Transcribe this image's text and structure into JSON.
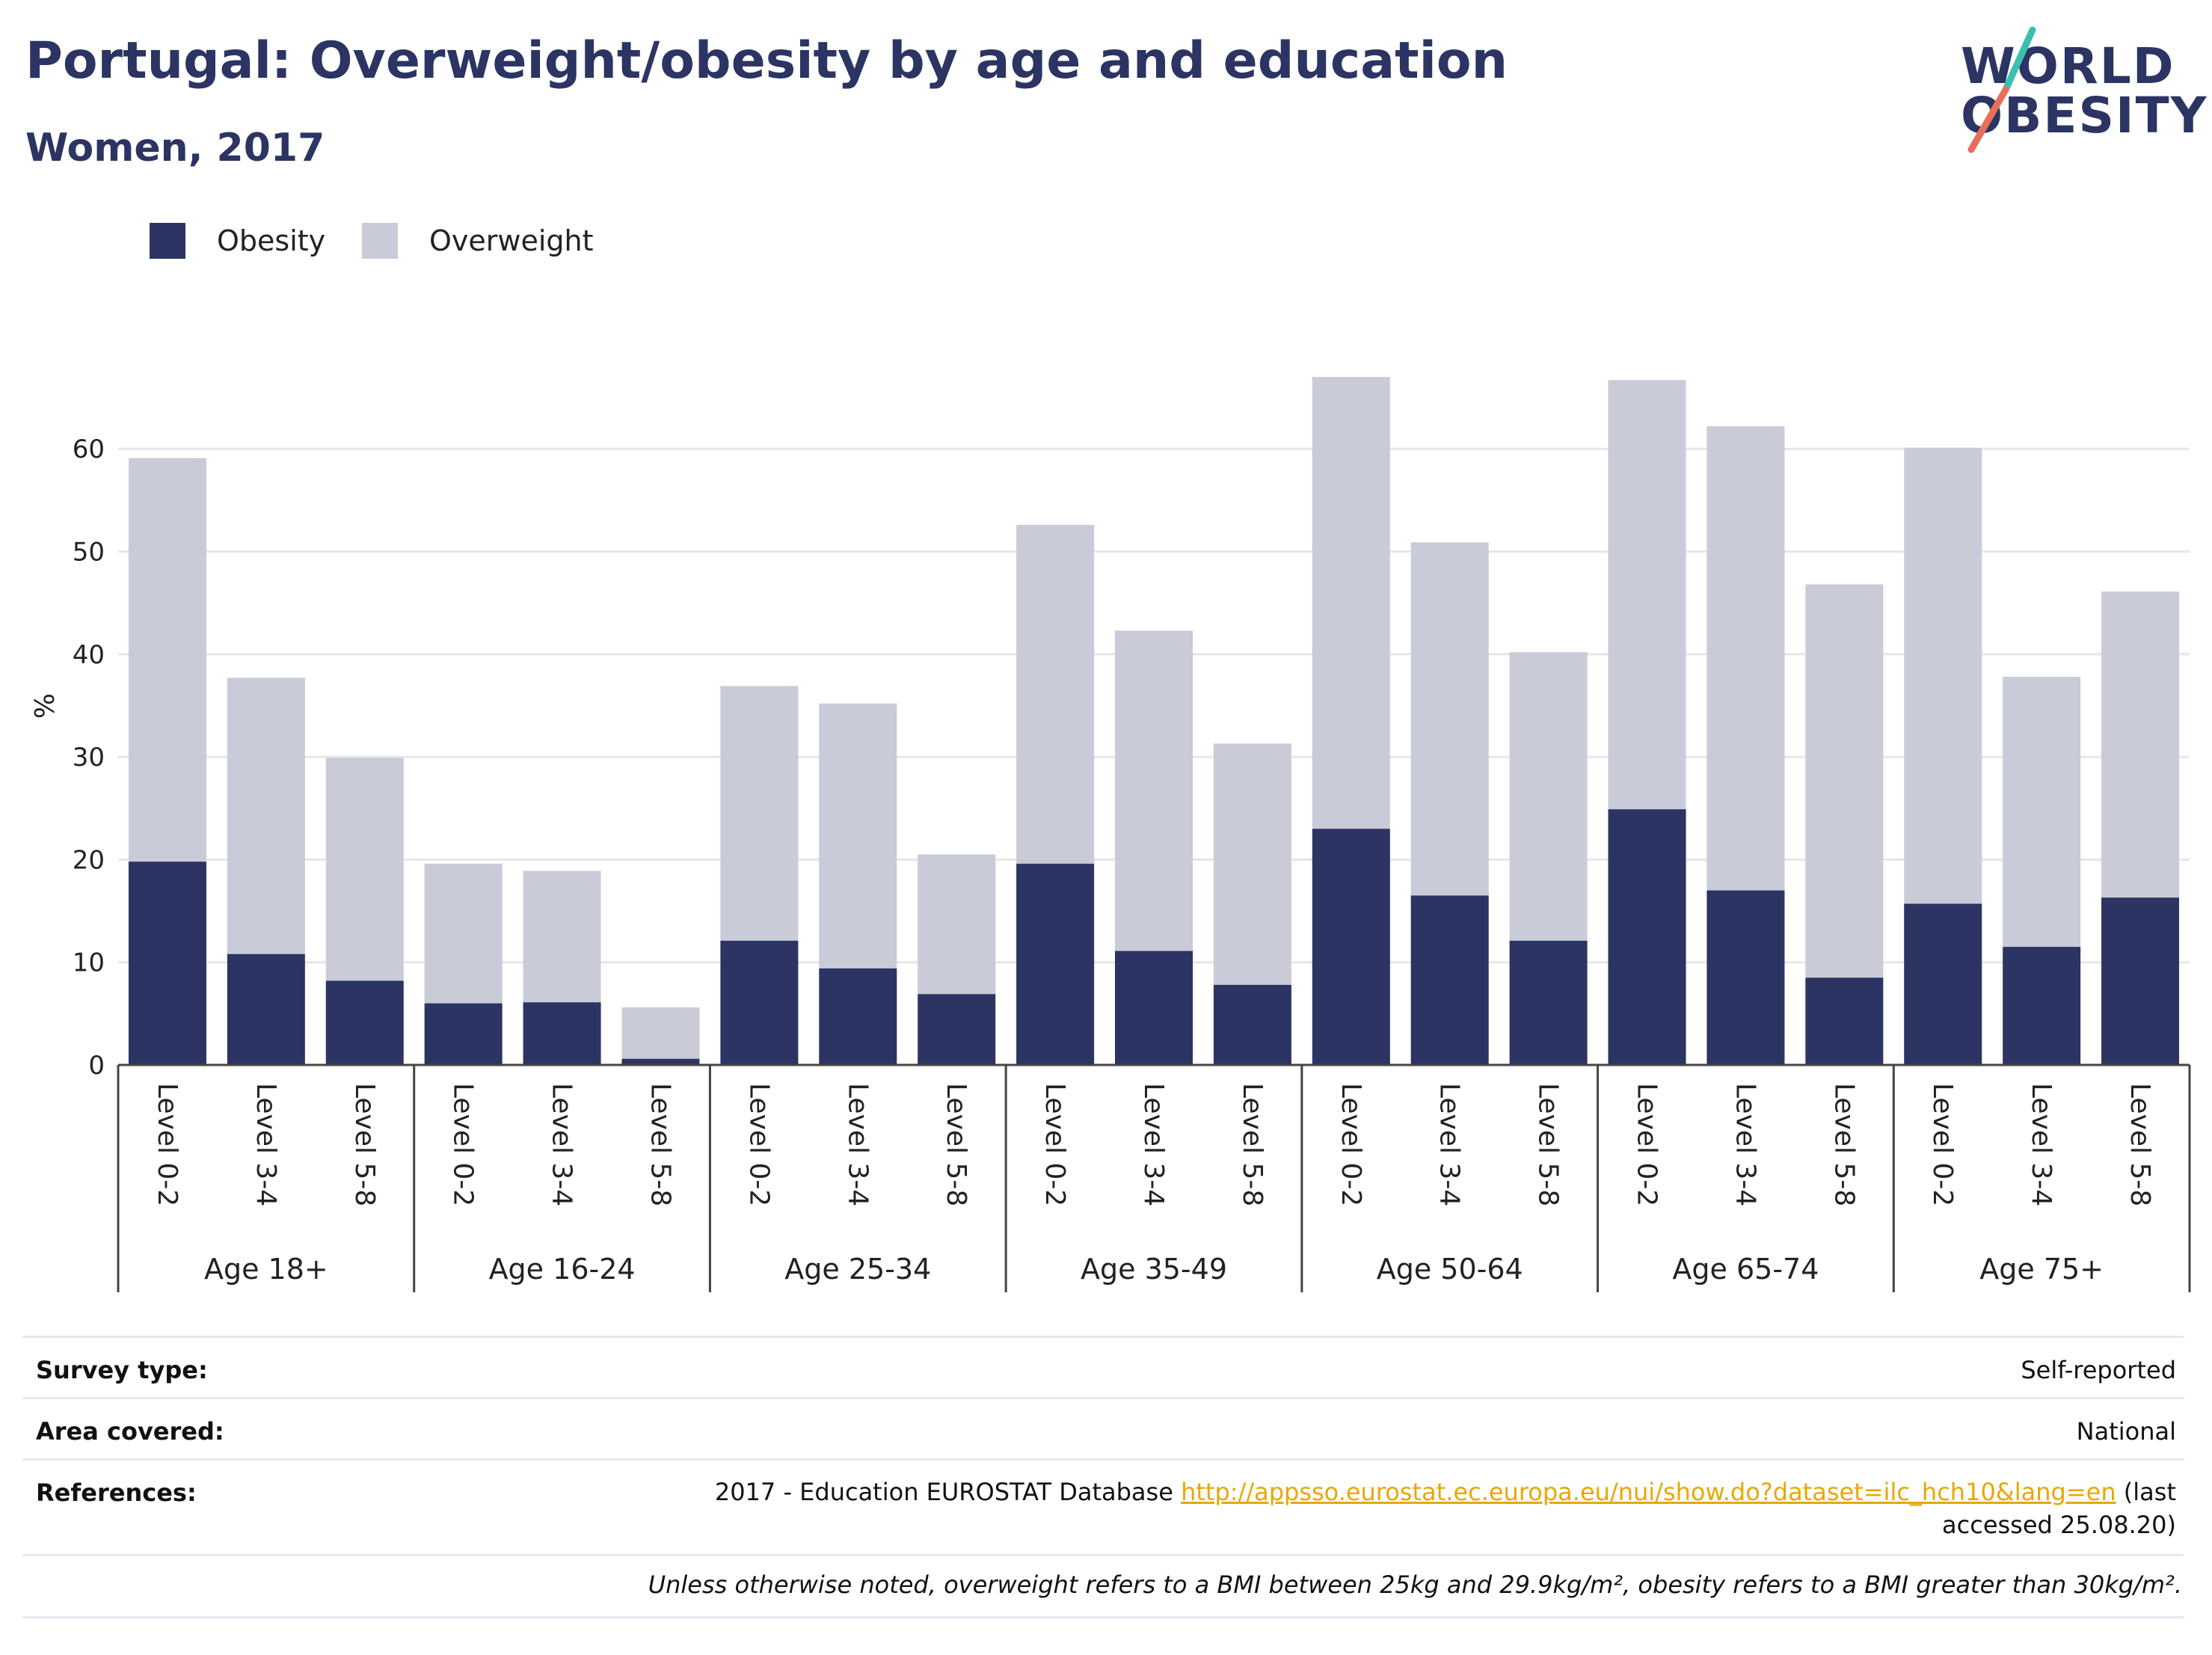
{
  "header": {
    "title": "Portugal: Overweight/obesity by age and education",
    "subtitle": "Women, 2017"
  },
  "logo": {
    "line1": "WORLD",
    "line2": "OBESITY"
  },
  "colors": {
    "obesity": "#2b3462",
    "overweight": "#c9cbd8",
    "accent_red": "#e76f5a",
    "accent_teal": "#3bbfb0",
    "link": "#e8a800"
  },
  "legend": {
    "items": [
      {
        "label": "Obesity",
        "color": "#2b3462"
      },
      {
        "label": "Overweight",
        "color": "#c9cbd8"
      }
    ]
  },
  "chart_data": {
    "type": "bar",
    "stacked": true,
    "ylabel": "%",
    "ylim": [
      0,
      70
    ],
    "yticks": [
      0,
      10,
      20,
      30,
      40,
      50,
      60
    ],
    "grid": true,
    "legend_position": "top-left",
    "groups": [
      "Age 18+",
      "Age 16-24",
      "Age 25-34",
      "Age 35-49",
      "Age 50-64",
      "Age 65-74",
      "Age 75+"
    ],
    "levels": [
      "Level 0-2",
      "Level 3-4",
      "Level 5-8"
    ],
    "categories": [
      "Level 0-2",
      "Level 3-4",
      "Level 5-8",
      "Level 0-2",
      "Level 3-4",
      "Level 5-8",
      "Level 0-2",
      "Level 3-4",
      "Level 5-8",
      "Level 0-2",
      "Level 3-4",
      "Level 5-8",
      "Level 0-2",
      "Level 3-4",
      "Level 5-8",
      "Level 0-2",
      "Level 3-4",
      "Level 5-8",
      "Level 0-2",
      "Level 3-4",
      "Level 5-8"
    ],
    "series": [
      {
        "name": "Obesity",
        "values": [
          19.8,
          10.8,
          8.2,
          6.0,
          6.1,
          0.6,
          12.1,
          9.4,
          6.9,
          19.6,
          11.1,
          7.8,
          23.0,
          16.5,
          12.1,
          24.9,
          17.0,
          8.5,
          15.7,
          11.5,
          16.3
        ]
      },
      {
        "name": "Overweight",
        "values": [
          39.3,
          26.9,
          21.7,
          13.6,
          12.8,
          5.0,
          24.8,
          25.8,
          13.6,
          33.0,
          31.2,
          23.5,
          44.0,
          34.4,
          28.1,
          41.8,
          45.2,
          38.3,
          44.4,
          26.3,
          29.8
        ]
      }
    ]
  },
  "footer": {
    "survey_type_label": "Survey type:",
    "survey_type_value": "Self-reported",
    "area_label": "Area covered:",
    "area_value": "National",
    "references_label": "References:",
    "references_text": "2017 - Education EUROSTAT Database",
    "references_link": "http://appsso.eurostat.ec.europa.eu/nui/show.do?dataset=ilc_hch10&lang=en",
    "references_suffix": "(last accessed 25.08.20)",
    "note": "Unless otherwise noted, overweight refers to a BMI between 25kg and 29.9kg/m², obesity refers to a BMI greater than 30kg/m²."
  }
}
